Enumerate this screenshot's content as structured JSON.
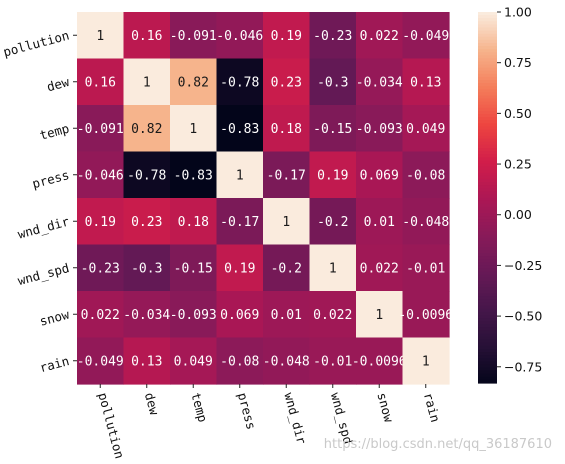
{
  "chart_data": {
    "type": "heatmap",
    "title": "",
    "xlabel": "",
    "ylabel": "",
    "variables": [
      "pollution",
      "dew",
      "temp",
      "press",
      "wnd_dir",
      "wnd_spd",
      "snow",
      "rain"
    ],
    "values": [
      [
        1,
        0.16,
        -0.091,
        -0.046,
        0.19,
        -0.23,
        0.022,
        -0.049
      ],
      [
        0.16,
        1,
        0.82,
        -0.78,
        0.23,
        -0.3,
        -0.034,
        0.13
      ],
      [
        -0.091,
        0.82,
        1,
        -0.83,
        0.18,
        -0.15,
        -0.093,
        0.049
      ],
      [
        -0.046,
        -0.78,
        -0.83,
        1,
        -0.17,
        0.19,
        0.069,
        -0.08
      ],
      [
        0.19,
        0.23,
        0.18,
        -0.17,
        1,
        -0.2,
        0.01,
        -0.048
      ],
      [
        -0.23,
        -0.3,
        -0.15,
        0.19,
        -0.2,
        1,
        0.022,
        -0.01
      ],
      [
        0.022,
        -0.034,
        -0.093,
        0.069,
        0.01,
        0.022,
        1,
        -0.0096
      ],
      [
        -0.049,
        0.13,
        0.049,
        -0.08,
        -0.048,
        -0.01,
        -0.0096,
        1
      ]
    ],
    "colorbar": {
      "range": [
        -0.83,
        1
      ],
      "ticks": [
        "1.00",
        "0.75",
        "0.50",
        "0.25",
        "0.00",
        "−0.25",
        "−0.50",
        "−0.75"
      ],
      "tick_values": [
        1,
        0.75,
        0.5,
        0.25,
        0,
        -0.25,
        -0.5,
        -0.75
      ]
    },
    "colormap": "rocket",
    "annotations": true
  },
  "watermark": "https://blog.csdn.net/qq_36187610"
}
